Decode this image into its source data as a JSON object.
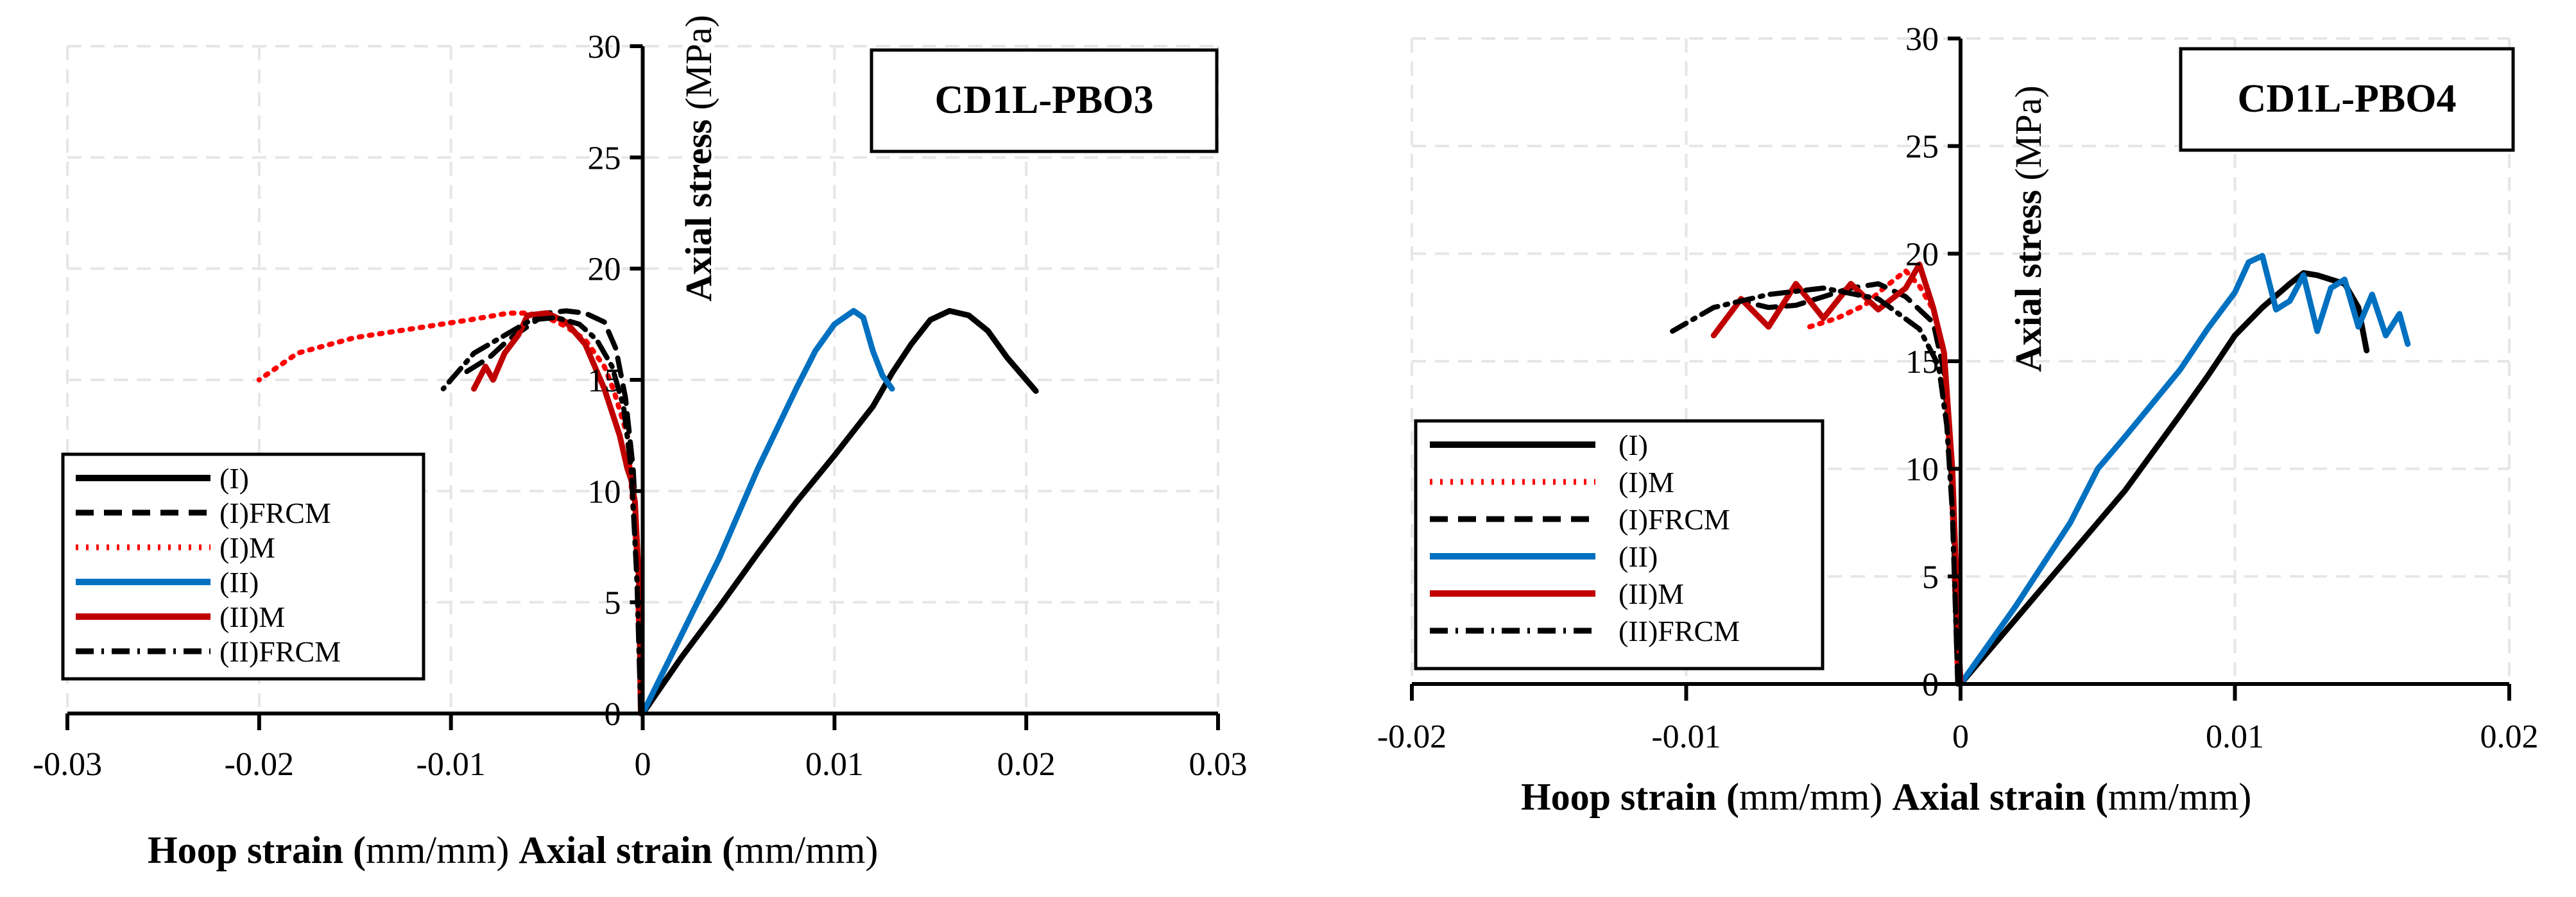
{
  "chart_data": [
    {
      "type": "line",
      "title": "CD1L-PBO3",
      "x_label_parts": [
        "Hoop strain (",
        "mm/mm) ",
        "Axial strain (",
        "mm/mm)"
      ],
      "ylabel_parts": [
        "Axial stress ",
        "(MPa)"
      ],
      "xlim": [
        -0.03,
        0.03
      ],
      "ylim": [
        0,
        30
      ],
      "x_ticks": [
        "-0.03",
        "-0.02",
        "-0.01",
        "0",
        "0.01",
        "0.02",
        "0.03"
      ],
      "y_ticks": [
        "0",
        "5",
        "10",
        "15",
        "20",
        "25",
        "30"
      ],
      "x_tick_values": [
        -0.03,
        -0.02,
        -0.01,
        0,
        0.01,
        0.02,
        0.03
      ],
      "y_tick_values": [
        0,
        5,
        10,
        15,
        20,
        25,
        30
      ],
      "legend": [
        "(I)",
        "(I)FRCM",
        "(I)M",
        "(II)",
        "(II)M",
        "(II)FRCM"
      ],
      "series": [
        {
          "name": "(I)",
          "color": "#000000",
          "style": "solid",
          "x": [
            0,
            0.002,
            0.004,
            0.006,
            0.008,
            0.01,
            0.012,
            0.013,
            0.014,
            0.015,
            0.016,
            0.017,
            0.018,
            0.019,
            0.0205
          ],
          "y": [
            0,
            2.5,
            4.8,
            7.2,
            9.5,
            11.6,
            13.8,
            15.3,
            16.6,
            17.7,
            18.1,
            17.9,
            17.2,
            16.0,
            14.5
          ]
        },
        {
          "name": "(I)FRCM",
          "color": "#000000",
          "style": "dashed",
          "x": [
            -0.0001,
            -0.0002,
            -0.0005,
            -0.0009,
            -0.0014,
            -0.002,
            -0.003,
            -0.004,
            -0.005,
            -0.006,
            -0.007,
            -0.008,
            -0.0095
          ],
          "y": [
            0,
            6,
            11.0,
            14.2,
            16.4,
            17.6,
            18.0,
            18.1,
            18.0,
            17.4,
            16.8,
            16.0,
            15.2
          ]
        },
        {
          "name": "(I)M",
          "color": "#ff0000",
          "style": "dotted",
          "x": [
            -0.0001,
            -0.0003,
            -0.0008,
            -0.0015,
            -0.002,
            -0.003,
            -0.004,
            -0.005,
            -0.006,
            -0.007,
            -0.009,
            -0.012,
            -0.015,
            -0.018,
            -0.02
          ],
          "y": [
            0,
            7,
            12.5,
            14.5,
            15.6,
            16.8,
            17.4,
            17.8,
            18.0,
            18.0,
            17.7,
            17.3,
            16.9,
            16.2,
            15.0
          ]
        },
        {
          "name": "(II)",
          "color": "#0070c0",
          "style": "solid",
          "x": [
            0,
            0.002,
            0.004,
            0.005,
            0.006,
            0.007,
            0.008,
            0.009,
            0.01,
            0.011,
            0.0115,
            0.012,
            0.0125,
            0.013
          ],
          "y": [
            0,
            3.5,
            7.0,
            9.0,
            11.0,
            12.8,
            14.6,
            16.3,
            17.5,
            18.1,
            17.8,
            16.3,
            15.2,
            14.6
          ]
        },
        {
          "name": "(II)M",
          "color": "#c00000",
          "style": "solid",
          "x": [
            -0.0001,
            -0.0002,
            -0.0004,
            -0.0006,
            -0.0008,
            -0.0012,
            -0.002,
            -0.003,
            -0.004,
            -0.005,
            -0.006,
            -0.0065,
            -0.0072,
            -0.0078,
            -0.0082,
            -0.0088
          ],
          "y": [
            0,
            6,
            9.5,
            10.5,
            11.0,
            12.5,
            14.6,
            16.6,
            17.6,
            18.0,
            17.9,
            17.0,
            16.2,
            15.0,
            15.6,
            14.6
          ]
        },
        {
          "name": "(II)FRCM",
          "color": "#000000",
          "style": "dashdot",
          "x": [
            -0.0001,
            -0.0003,
            -0.0006,
            -0.001,
            -0.0016,
            -0.0024,
            -0.0033,
            -0.0045,
            -0.0058,
            -0.0072,
            -0.0088,
            -0.0104
          ],
          "y": [
            0,
            6,
            11,
            13.8,
            15.6,
            16.8,
            17.5,
            17.8,
            17.7,
            17.0,
            16.2,
            14.6
          ]
        }
      ]
    },
    {
      "type": "line",
      "title": "CD1L-PBO4",
      "x_label_parts": [
        "Hoop strain (",
        "mm/mm) ",
        "Axial strain (",
        "mm/mm)"
      ],
      "ylabel_parts": [
        "Axial stress ",
        "(MPa)"
      ],
      "xlim": [
        -0.02,
        0.02
      ],
      "ylim": [
        0,
        30
      ],
      "x_ticks": [
        "-0.02",
        "-0.01",
        "0",
        "0.01",
        "0.02"
      ],
      "y_ticks": [
        "0",
        "5",
        "10",
        "15",
        "20",
        "25",
        "30"
      ],
      "x_tick_values": [
        -0.02,
        -0.01,
        0,
        0.01,
        0.02
      ],
      "y_tick_values": [
        0,
        5,
        10,
        15,
        20,
        25,
        30
      ],
      "legend": [
        "(I)",
        "(I)M",
        "(I)FRCM",
        "(II)",
        "(II)M",
        "(II)FRCM"
      ],
      "series": [
        {
          "name": "(I)",
          "color": "#000000",
          "style": "solid",
          "x": [
            0,
            0.002,
            0.004,
            0.006,
            0.008,
            0.009,
            0.01,
            0.011,
            0.012,
            0.0125,
            0.013,
            0.014,
            0.0145,
            0.0148
          ],
          "y": [
            0,
            3.0,
            6.0,
            9.0,
            12.5,
            14.3,
            16.2,
            17.5,
            18.6,
            19.1,
            19.0,
            18.6,
            17.5,
            15.5
          ]
        },
        {
          "name": "(I)M",
          "color": "#ff0000",
          "style": "dotted",
          "x": [
            -0.0001,
            -0.0003,
            -0.0006,
            -0.001,
            -0.0015,
            -0.002,
            -0.0028,
            -0.0035,
            -0.0045,
            -0.0055
          ],
          "y": [
            0,
            8,
            15.5,
            17.4,
            18.5,
            19.2,
            18.4,
            17.6,
            17.0,
            16.6
          ]
        },
        {
          "name": "(I)FRCM",
          "color": "#000000",
          "style": "dashed",
          "x": [
            -0.0001,
            -0.0003,
            -0.0006,
            -0.001,
            -0.002,
            -0.003,
            -0.004,
            -0.005,
            -0.006,
            -0.007,
            -0.008
          ],
          "y": [
            0,
            9,
            14.5,
            16.8,
            18.0,
            18.6,
            18.4,
            18.0,
            17.6,
            17.5,
            17.8
          ]
        },
        {
          "name": "(II)",
          "color": "#0070c0",
          "style": "solid",
          "x": [
            0,
            0.002,
            0.004,
            0.005,
            0.006,
            0.008,
            0.009,
            0.01,
            0.0105,
            0.011,
            0.0115,
            0.012,
            0.0125,
            0.013,
            0.0135,
            0.014,
            0.0145,
            0.015,
            0.0155,
            0.016,
            0.0163
          ],
          "y": [
            0,
            3.6,
            7.5,
            10.0,
            11.5,
            14.6,
            16.5,
            18.2,
            19.6,
            19.9,
            17.4,
            17.8,
            19.0,
            16.4,
            18.4,
            18.8,
            16.6,
            18.1,
            16.2,
            17.2,
            15.8
          ]
        },
        {
          "name": "(II)M",
          "color": "#c00000",
          "style": "solid",
          "x": [
            0,
            -0.0001,
            -0.0003,
            -0.0006,
            -0.001,
            -0.0015,
            -0.002,
            -0.003,
            -0.004,
            -0.005,
            -0.006,
            -0.007,
            -0.008,
            -0.009
          ],
          "y": [
            0,
            3,
            10,
            15.4,
            17.5,
            19.5,
            18.4,
            17.4,
            18.6,
            17.0,
            18.6,
            16.6,
            17.9,
            16.2
          ]
        },
        {
          "name": "(II)FRCM",
          "color": "#000000",
          "style": "dashdot",
          "x": [
            -0.0001,
            -0.0003,
            -0.0005,
            -0.0008,
            -0.0015,
            -0.003,
            -0.005,
            -0.007,
            -0.009,
            -0.0105
          ],
          "y": [
            0,
            8,
            12,
            14.8,
            16.5,
            17.9,
            18.4,
            18.1,
            17.5,
            16.4
          ]
        }
      ]
    }
  ]
}
